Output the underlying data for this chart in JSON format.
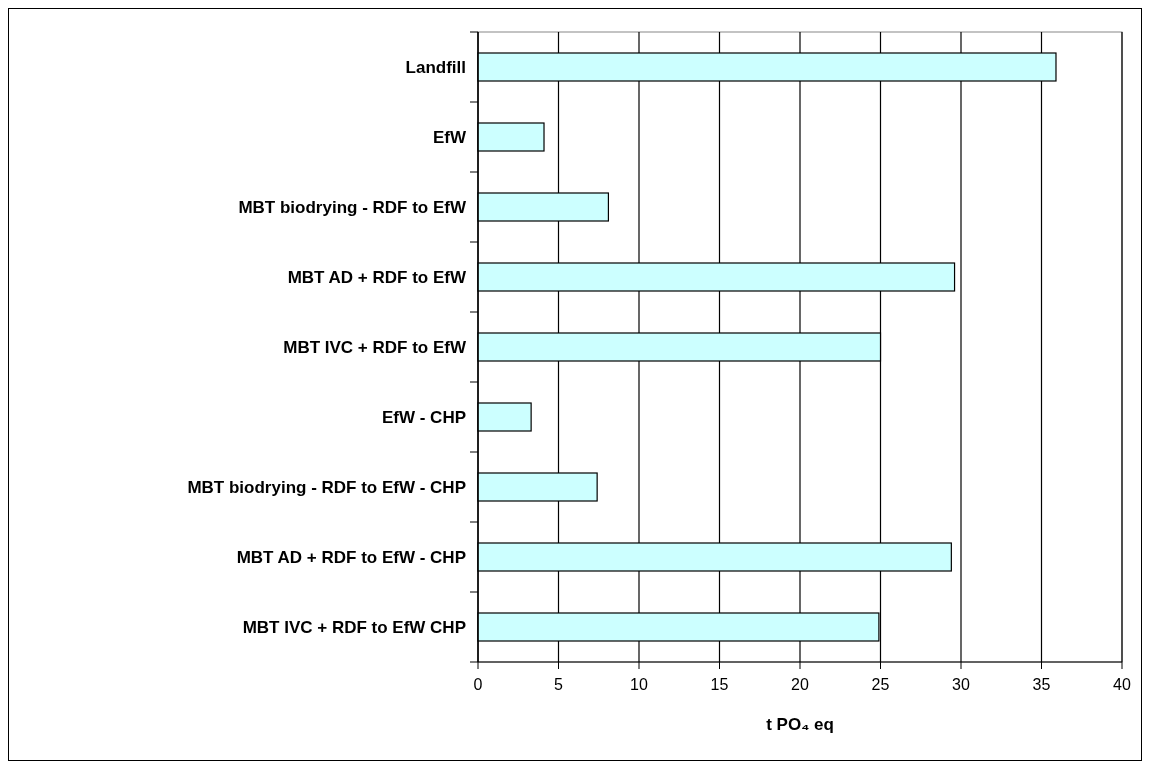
{
  "chart_data": {
    "type": "bar",
    "orientation": "horizontal",
    "xlabel": "t PO₄ eq",
    "categories": [
      "Landfill",
      "EfW",
      "MBT biodrying - RDF to EfW",
      "MBT AD + RDF to EfW",
      "MBT IVC + RDF to EfW",
      "EfW - CHP",
      "MBT biodrying - RDF to EfW - CHP",
      "MBT AD + RDF to EfW - CHP",
      "MBT IVC + RDF to EfW CHP"
    ],
    "values": [
      35.9,
      4.1,
      8.1,
      29.6,
      25.0,
      3.3,
      7.4,
      29.4,
      24.9
    ],
    "color": "#ccffff",
    "xlim": [
      0,
      40
    ],
    "xticks": [
      0,
      5,
      10,
      15,
      20,
      25,
      30,
      35,
      40
    ],
    "grid": "x"
  }
}
